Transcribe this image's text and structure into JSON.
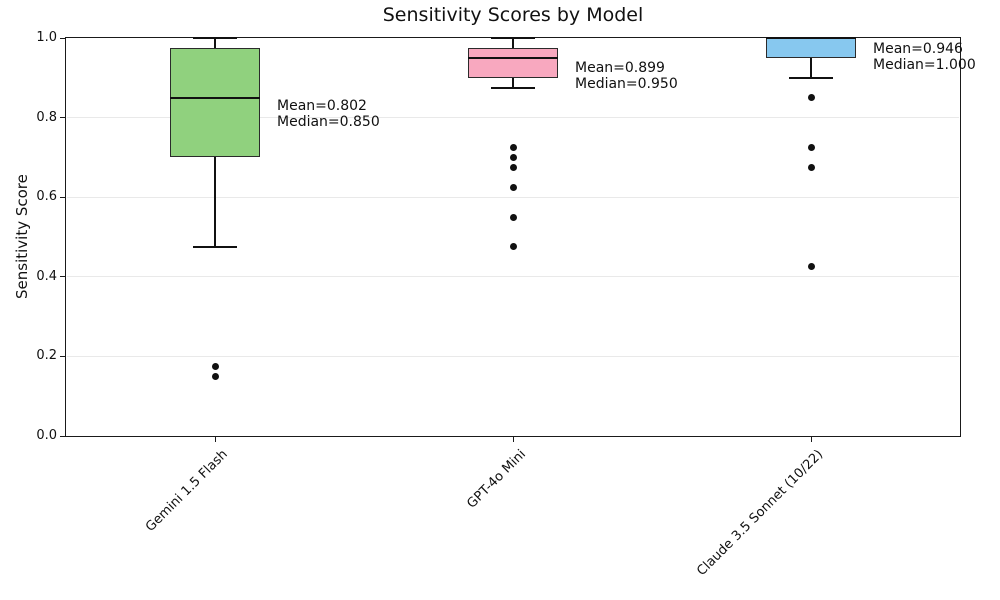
{
  "chart_data": {
    "type": "boxplot",
    "title": "Sensitivity Scores by Model",
    "xlabel": "",
    "ylabel": "Sensitivity Score",
    "ylim": [
      0.0,
      1.0
    ],
    "ytick_labels": [
      "0.0",
      "0.2",
      "0.4",
      "0.6",
      "0.8",
      "1.0"
    ],
    "grid": "horizontal-light",
    "legend": "none",
    "categories": [
      "Gemini 1.5 Flash",
      "GPT-4o Mini",
      "Claude 3.5 Sonnet (10/22)"
    ],
    "series": [
      {
        "category": "Gemini 1.5 Flash",
        "box_color": "#90d17e",
        "whisker_low": 0.475,
        "q1": 0.7,
        "median": 0.85,
        "q3": 0.975,
        "whisker_high": 1.0,
        "mean": 0.802,
        "outliers": [
          0.175,
          0.15
        ],
        "annotation_lines": [
          "Mean=0.802",
          "Median=0.850"
        ]
      },
      {
        "category": "GPT-4o Mini",
        "box_color": "#f8a8bf",
        "whisker_low": 0.875,
        "q1": 0.9,
        "median": 0.95,
        "q3": 0.975,
        "whisker_high": 1.0,
        "mean": 0.899,
        "outliers": [
          0.725,
          0.7,
          0.675,
          0.625,
          0.55,
          0.475
        ],
        "annotation_lines": [
          "Mean=0.899",
          "Median=0.950"
        ]
      },
      {
        "category": "Claude 3.5 Sonnet (10/22)",
        "box_color": "#87c8ef",
        "whisker_low": 0.9,
        "q1": 0.95,
        "median": 1.0,
        "q3": 1.0,
        "whisker_high": 1.0,
        "mean": 0.946,
        "outliers": [
          0.85,
          0.725,
          0.675,
          0.425
        ],
        "annotation_lines": [
          "Mean=0.946",
          "Median=1.000"
        ]
      }
    ],
    "colors": {
      "background": "#ffffff",
      "spine": "#1a1a1a",
      "grid": "#e9e9e9",
      "box_edge": "#2b2b2b",
      "median_line": "#111111",
      "whisker": "#111111",
      "outlier": "#111111"
    }
  }
}
